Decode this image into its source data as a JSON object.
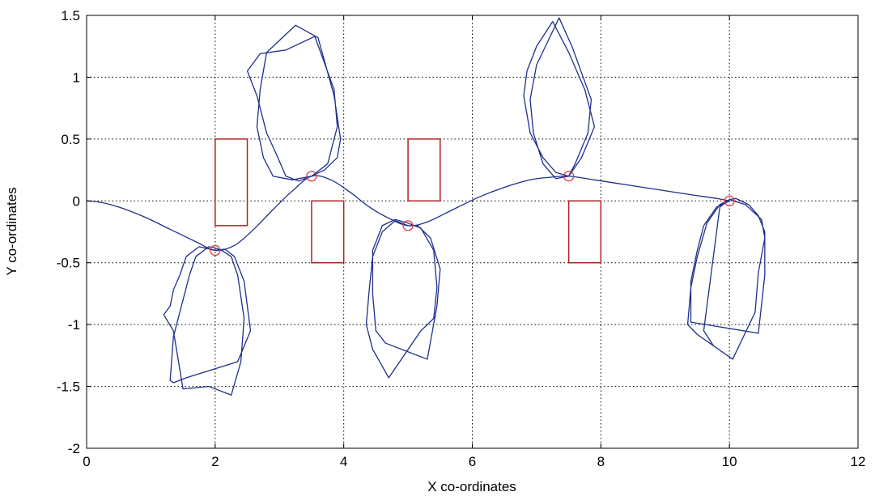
{
  "chart_data": {
    "type": "line",
    "title": "",
    "xlabel": "X co-ordinates",
    "ylabel": "Y co-ordinates",
    "xlim": [
      0,
      12
    ],
    "ylim": [
      -2,
      1.5
    ],
    "xticks": [
      0,
      2,
      4,
      6,
      8,
      10,
      12
    ],
    "yticks": [
      -2,
      -1.5,
      -1,
      -0.5,
      0,
      0.5,
      1,
      1.5
    ],
    "xtick_labels": [
      "0",
      "2",
      "4",
      "6",
      "8",
      "10",
      "12"
    ],
    "ytick_labels": [
      "-2",
      "-1.5",
      "-1",
      "-0.5",
      "0",
      "0.5",
      "1",
      "1.5"
    ],
    "grid": true,
    "colors": {
      "trajectory": "#1f2f8c",
      "obstacle": "#b22222",
      "waypoint": "#d23c3c",
      "axis": "#000000"
    },
    "trajectory": {
      "x": [
        0,
        0.2,
        0.5,
        0.9,
        1.3,
        1.7,
        2.0,
        2.3,
        2.6,
        2.9,
        3.2,
        3.5,
        3.8,
        4.1,
        4.4,
        4.7,
        5.0,
        5.3,
        5.7,
        6.1,
        6.5,
        6.9,
        7.2,
        7.5,
        7.9,
        8.4,
        8.9,
        9.4,
        9.8,
        10.0
      ],
      "y": [
        0,
        -0.01,
        -0.05,
        -0.13,
        -0.23,
        -0.33,
        -0.4,
        -0.36,
        -0.23,
        -0.07,
        0.08,
        0.2,
        0.17,
        0.07,
        -0.05,
        -0.14,
        -0.2,
        -0.17,
        -0.07,
        0.03,
        0.11,
        0.17,
        0.19,
        0.2,
        0.17,
        0.13,
        0.09,
        0.05,
        0.02,
        0
      ]
    },
    "waypoints": {
      "x": [
        2,
        3.5,
        5,
        7.5,
        10
      ],
      "y": [
        -0.4,
        0.2,
        -0.2,
        0.2,
        0
      ]
    },
    "loops": [
      {
        "x": [
          2.0,
          1.75,
          1.55,
          1.45,
          1.35,
          1.3,
          1.2,
          1.35,
          1.5,
          1.9,
          2.25,
          2.4,
          2.45,
          2.35,
          2.25,
          2.1,
          2.0,
          1.9,
          1.7,
          1.6,
          1.5,
          1.35,
          1.3,
          1.35,
          1.55,
          2.35,
          2.55,
          2.45,
          2.3,
          2.15,
          2.0
        ],
        "y": [
          -0.4,
          -0.37,
          -0.45,
          -0.6,
          -0.72,
          -0.85,
          -0.92,
          -1.05,
          -1.52,
          -1.5,
          -1.57,
          -1.3,
          -0.95,
          -0.6,
          -0.45,
          -0.4,
          -0.38,
          -0.37,
          -0.45,
          -0.6,
          -0.8,
          -1.1,
          -1.45,
          -1.47,
          -1.43,
          -1.3,
          -1.05,
          -0.65,
          -0.45,
          -0.39,
          -0.4
        ]
      },
      {
        "x": [
          3.5,
          3.2,
          2.9,
          2.75,
          2.65,
          2.7,
          2.8,
          3.25,
          3.6,
          3.85,
          3.95,
          3.9,
          3.7,
          3.5,
          3.3,
          3.1,
          2.95,
          2.8,
          2.65,
          2.5,
          2.7,
          3.1,
          3.55,
          3.85,
          3.9,
          3.75,
          3.5
        ],
        "y": [
          0.2,
          0.17,
          0.2,
          0.35,
          0.6,
          0.9,
          1.2,
          1.42,
          1.32,
          0.85,
          0.5,
          0.35,
          0.25,
          0.2,
          0.16,
          0.2,
          0.38,
          0.55,
          0.85,
          1.05,
          1.19,
          1.22,
          1.33,
          0.9,
          0.6,
          0.3,
          0.2
        ]
      },
      {
        "x": [
          5.0,
          4.8,
          4.6,
          4.45,
          4.4,
          4.35,
          4.45,
          4.7,
          5.2,
          5.4,
          5.45,
          5.4,
          5.2,
          5.0,
          4.8,
          4.6,
          4.45,
          4.45,
          4.5,
          4.65,
          5.3,
          5.45,
          5.5,
          5.35,
          5.15,
          5.0
        ],
        "y": [
          -0.2,
          -0.16,
          -0.25,
          -0.45,
          -0.7,
          -1.0,
          -1.2,
          -1.43,
          -1.05,
          -0.95,
          -0.7,
          -0.4,
          -0.22,
          -0.18,
          -0.15,
          -0.2,
          -0.4,
          -0.75,
          -1.05,
          -1.15,
          -1.28,
          -0.85,
          -0.55,
          -0.3,
          -0.2,
          -0.2
        ]
      },
      {
        "x": [
          7.5,
          7.3,
          7.1,
          6.9,
          6.8,
          6.85,
          7.0,
          7.25,
          7.5,
          7.75,
          7.9,
          7.7,
          7.5,
          7.3,
          7.1,
          6.95,
          6.9,
          7.0,
          7.35,
          7.55,
          7.85,
          7.8,
          7.6,
          7.5
        ],
        "y": [
          0.2,
          0.23,
          0.35,
          0.55,
          0.85,
          1.05,
          1.25,
          1.45,
          1.2,
          0.9,
          0.6,
          0.35,
          0.2,
          0.18,
          0.3,
          0.55,
          0.82,
          1.1,
          1.48,
          1.25,
          0.82,
          0.55,
          0.3,
          0.2
        ]
      },
      {
        "x": [
          10.0,
          9.8,
          9.6,
          9.5,
          9.4,
          9.4,
          10.45,
          10.55,
          10.55,
          10.45,
          10.3,
          10.1,
          10.0,
          9.85,
          9.65,
          9.5,
          9.4,
          9.35,
          9.5,
          10.05,
          10.4,
          10.45,
          10.55,
          10.5,
          10.25,
          10.0,
          9.85,
          9.6,
          9.75
        ],
        "y": [
          0,
          -0.05,
          -0.2,
          -0.4,
          -0.65,
          -0.98,
          -1.07,
          -0.6,
          -0.25,
          -0.12,
          -0.03,
          0.02,
          0.01,
          -0.03,
          -0.18,
          -0.45,
          -0.7,
          -1.0,
          -1.08,
          -1.28,
          -0.9,
          -0.58,
          -0.3,
          -0.15,
          -0.03,
          0.01,
          -0.05,
          -1.05,
          -1.17
        ]
      }
    ],
    "obstacles": [
      {
        "x0": 2.0,
        "x1": 2.5,
        "y0": -0.2,
        "y1": 0.5
      },
      {
        "x0": 3.5,
        "x1": 4.0,
        "y0": -0.5,
        "y1": 0.0
      },
      {
        "x0": 5.0,
        "x1": 5.5,
        "y0": 0.0,
        "y1": 0.5
      },
      {
        "x0": 7.5,
        "x1": 8.0,
        "y0": -0.5,
        "y1": 0.0
      }
    ]
  }
}
